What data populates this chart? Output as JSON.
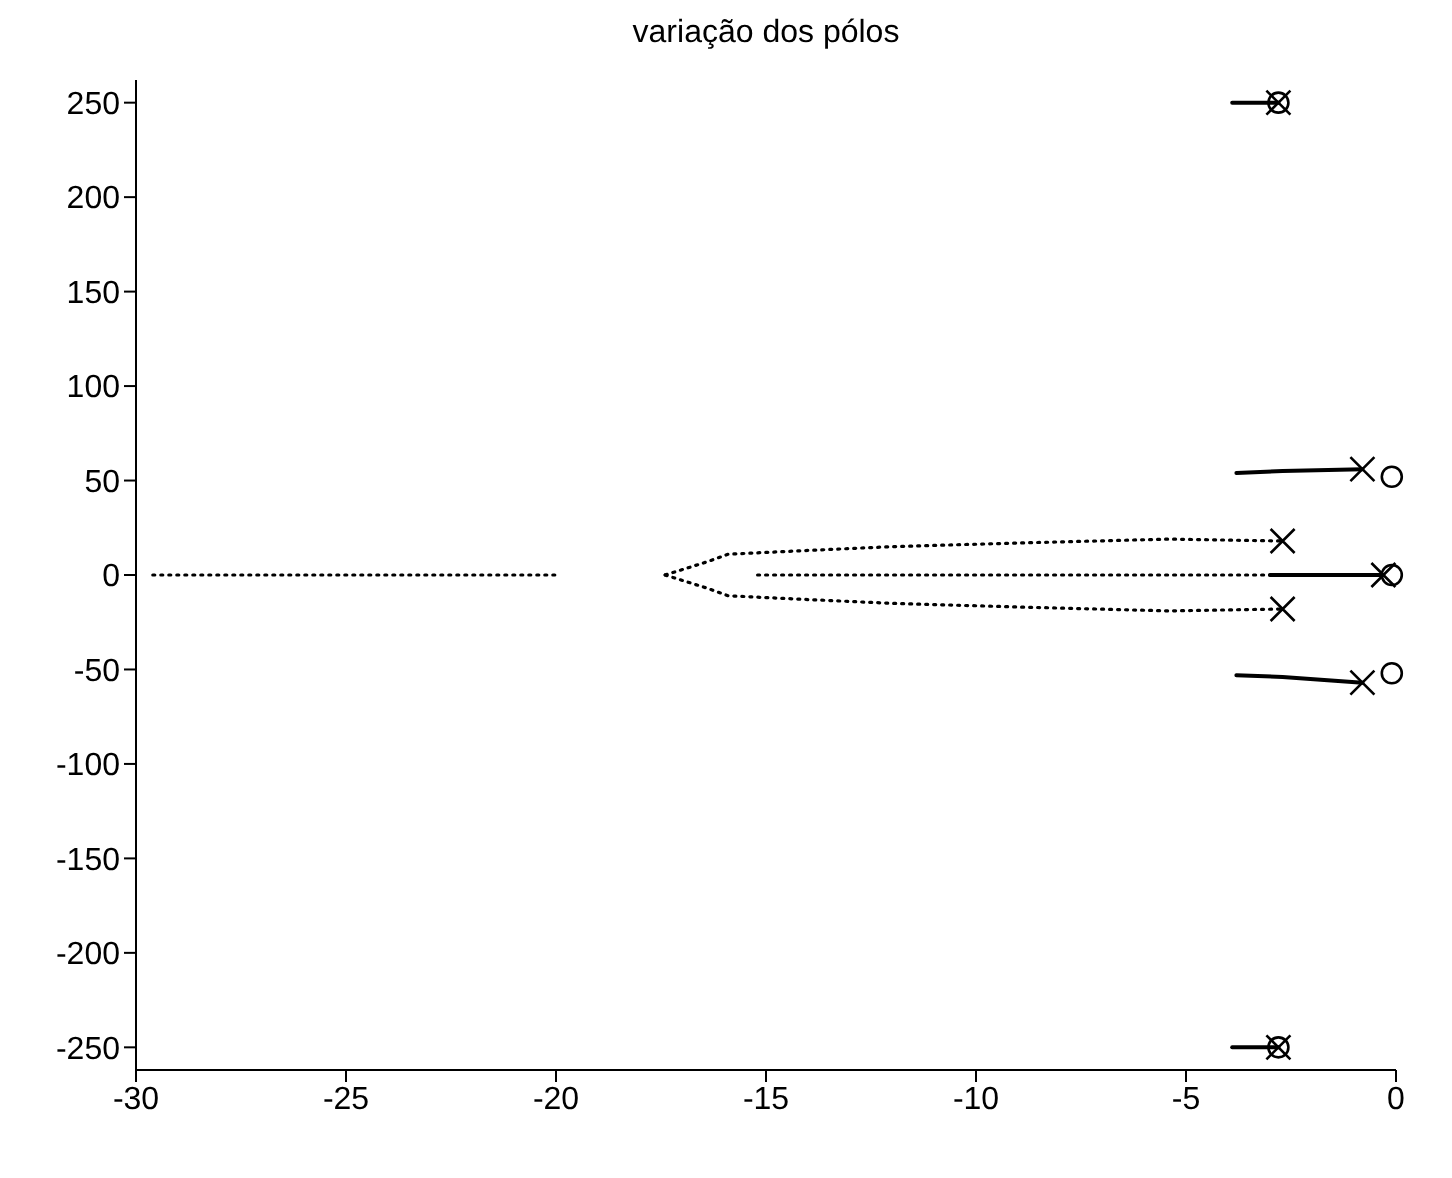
{
  "chart_data": {
    "type": "scatter",
    "title": "variação dos pólos",
    "xlim": [
      -30,
      0
    ],
    "xticks": [
      -30,
      -25,
      -20,
      -15,
      -10,
      -5,
      0
    ],
    "ylim": [
      -262,
      262
    ],
    "yticks": [
      -250,
      -200,
      -150,
      -100,
      -50,
      0,
      50,
      100,
      150,
      200,
      250
    ],
    "grid": false,
    "legend": false,
    "series": [
      {
        "type": "line",
        "line_style": "dotted",
        "color": "#000000",
        "x": [
          -29.6,
          -28.9,
          -28,
          -26.9,
          -26.2,
          -25.7,
          -25,
          -24.3,
          -23.7,
          -22.8,
          -22.1,
          -21.1,
          -19.9
        ],
        "values": [
          0,
          0,
          0,
          0,
          0,
          0,
          0,
          0,
          0,
          0,
          0,
          0,
          0
        ]
      },
      {
        "type": "line",
        "line_style": "dotted",
        "color": "#000000",
        "x": [
          -15.2,
          -12,
          -9,
          -6,
          -3
        ],
        "values": [
          0,
          0,
          0,
          0,
          0
        ]
      },
      {
        "type": "line",
        "line_style": "dotted",
        "color": "#000000",
        "x": [
          -17.4,
          -16.4,
          -15.9,
          -14,
          -12,
          -8.9,
          -5.4,
          -2.7
        ],
        "values": [
          0,
          7,
          11,
          13,
          15,
          17,
          19,
          18
        ]
      },
      {
        "type": "line",
        "line_style": "dotted",
        "color": "#000000",
        "x": [
          -17.4,
          -16.4,
          -15.9,
          -14,
          -12,
          -8.9,
          -5.4,
          -2.7
        ],
        "values": [
          0,
          -7,
          -11,
          -13,
          -15,
          -17,
          -19,
          -18
        ]
      },
      {
        "type": "line",
        "line_style": "solid",
        "color": "#000000",
        "x": [
          -3,
          -0.3
        ],
        "values": [
          0,
          0
        ]
      },
      {
        "type": "line",
        "line_style": "solid",
        "color": "#000000",
        "x": [
          -3.9,
          -2.8
        ],
        "values": [
          250,
          250
        ]
      },
      {
        "type": "line",
        "line_style": "solid",
        "color": "#000000",
        "x": [
          -3.9,
          -2.8
        ],
        "values": [
          -250,
          -250
        ]
      },
      {
        "type": "line",
        "line_style": "solid",
        "color": "#000000",
        "x": [
          -3.8,
          -2.7,
          -0.8
        ],
        "values": [
          54,
          55,
          56
        ]
      },
      {
        "type": "line",
        "line_style": "solid",
        "color": "#000000",
        "x": [
          -3.8,
          -2.7,
          -0.8
        ],
        "values": [
          -53,
          -54,
          -57
        ]
      },
      {
        "marker": "cross",
        "color": "#000000",
        "x": [
          -2.8,
          -0.8,
          -2.7,
          -2.7,
          -0.3,
          -0.8,
          -2.8
        ],
        "values": [
          250,
          56,
          18,
          -18,
          0,
          -57,
          -250
        ]
      },
      {
        "marker": "circle",
        "color": "#000000",
        "x": [
          -2.8,
          -0.1,
          -0.1,
          -0.1,
          -2.8
        ],
        "values": [
          250,
          52,
          0,
          -52,
          -250
        ]
      }
    ]
  }
}
